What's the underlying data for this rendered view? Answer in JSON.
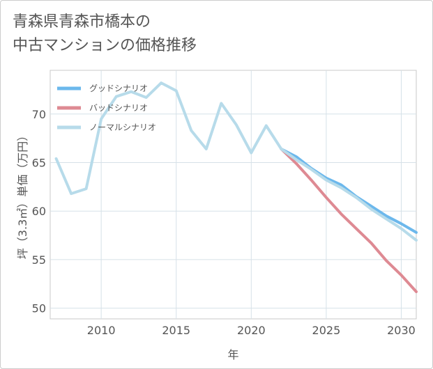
{
  "title_lines": [
    "青森県青森市橋本の",
    "中古マンションの価格推移"
  ],
  "chart_data": {
    "type": "line",
    "title": "青森県青森市橋本の中古マンションの価格推移",
    "xlabel": "年",
    "ylabel": "坪（3.3㎡）単価（万円）",
    "xlim": [
      2006.6,
      2031.0
    ],
    "ylim": [
      48.9,
      74.5
    ],
    "xticks": [
      2010,
      2015,
      2020,
      2025,
      2030
    ],
    "yticks": [
      50,
      55,
      60,
      65,
      70
    ],
    "grid": true,
    "legend_position": "top-left",
    "series": [
      {
        "name": "グッドシナリオ",
        "color": "#6cb8ec",
        "x": [
          2022,
          2023,
          2024,
          2025,
          2026,
          2027,
          2028,
          2029,
          2030,
          2031
        ],
        "values": [
          66.4,
          65.6,
          64.4,
          63.4,
          62.7,
          61.5,
          60.5,
          59.5,
          58.7,
          57.8
        ]
      },
      {
        "name": "バッドシナリオ",
        "color": "#de8a93",
        "x": [
          2022,
          2023,
          2024,
          2025,
          2026,
          2027,
          2028,
          2029,
          2030,
          2031
        ],
        "values": [
          66.4,
          64.9,
          63.2,
          61.4,
          59.7,
          58.2,
          56.7,
          54.9,
          53.4,
          51.7
        ]
      },
      {
        "name": "ノーマルシナリオ",
        "color": "#b7dbea",
        "x": [
          2007,
          2008,
          2009,
          2010,
          2011,
          2012,
          2013,
          2014,
          2015,
          2016,
          2017,
          2018,
          2019,
          2020,
          2021,
          2022,
          2023,
          2024,
          2025,
          2026,
          2027,
          2028,
          2029,
          2030,
          2031
        ],
        "values": [
          65.4,
          61.8,
          62.3,
          69.5,
          71.8,
          72.3,
          71.7,
          73.2,
          72.4,
          68.3,
          66.4,
          71.1,
          68.9,
          66.0,
          68.8,
          66.4,
          65.3,
          64.3,
          63.2,
          62.4,
          61.4,
          60.2,
          59.2,
          58.2,
          57.0
        ]
      }
    ]
  }
}
